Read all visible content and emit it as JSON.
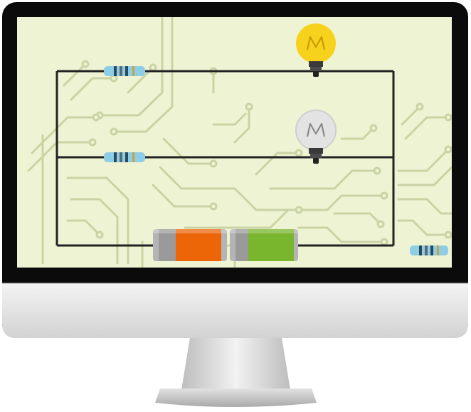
{
  "scene": {
    "description_visible_text": "",
    "colors": {
      "bezel": "#0b0b0b",
      "screen_background": "#eef3d3",
      "trace": "#c9d3a4",
      "wire": "#222222",
      "bulb_on": "#f7d21c",
      "bulb_on_filament": "#c89a06",
      "bulb_off": "#e3e3e3",
      "bulb_off_filament": "#8a8a8a",
      "bulb_base": "#3a3a3a",
      "resistor_body": "#8ecde6",
      "battery_orange": "#ec6608",
      "battery_green": "#7ab52e",
      "battery_cap": "#b4b4b4",
      "chin": "#e7e7e7",
      "stand": "#d8d8d8"
    },
    "components": {
      "bulbs": [
        {
          "name": "bulb-lit",
          "state": "on"
        },
        {
          "name": "bulb-unlit",
          "state": "off"
        }
      ],
      "resistors": 3,
      "batteries": 2
    },
    "icons": [
      "monitor-icon",
      "lightbulb-icon",
      "resistor-icon",
      "battery-icon"
    ]
  }
}
